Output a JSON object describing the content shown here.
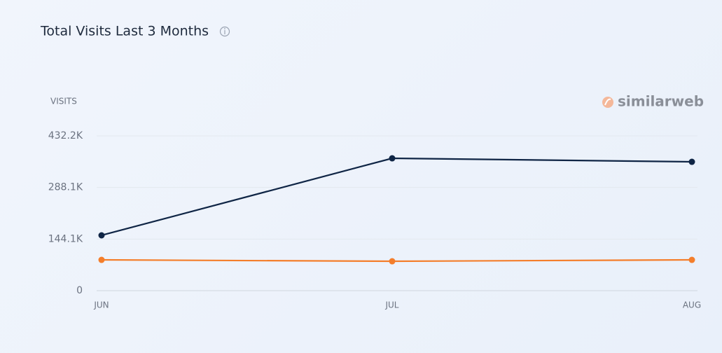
{
  "chart_data": {
    "type": "line",
    "title": "Total Visits Last 3 Months",
    "y_label": "VISITS",
    "brand": "similarweb",
    "categories": [
      "JUN",
      "JUL",
      "AUG"
    ],
    "series": [
      {
        "color": "#0f2545",
        "values": [
          154500,
          369600,
          359800
        ]
      },
      {
        "color": "#f47e2b",
        "values": [
          86000,
          82100,
          86000
        ]
      }
    ],
    "ylim": [
      0,
      432200
    ],
    "yticks": [
      0,
      {
        "value": 144100,
        "label": "144.1K"
      },
      {
        "value": 288100,
        "label": "288.1K"
      },
      {
        "value": 432200,
        "label": "432.2K"
      }
    ],
    "grid": true
  }
}
